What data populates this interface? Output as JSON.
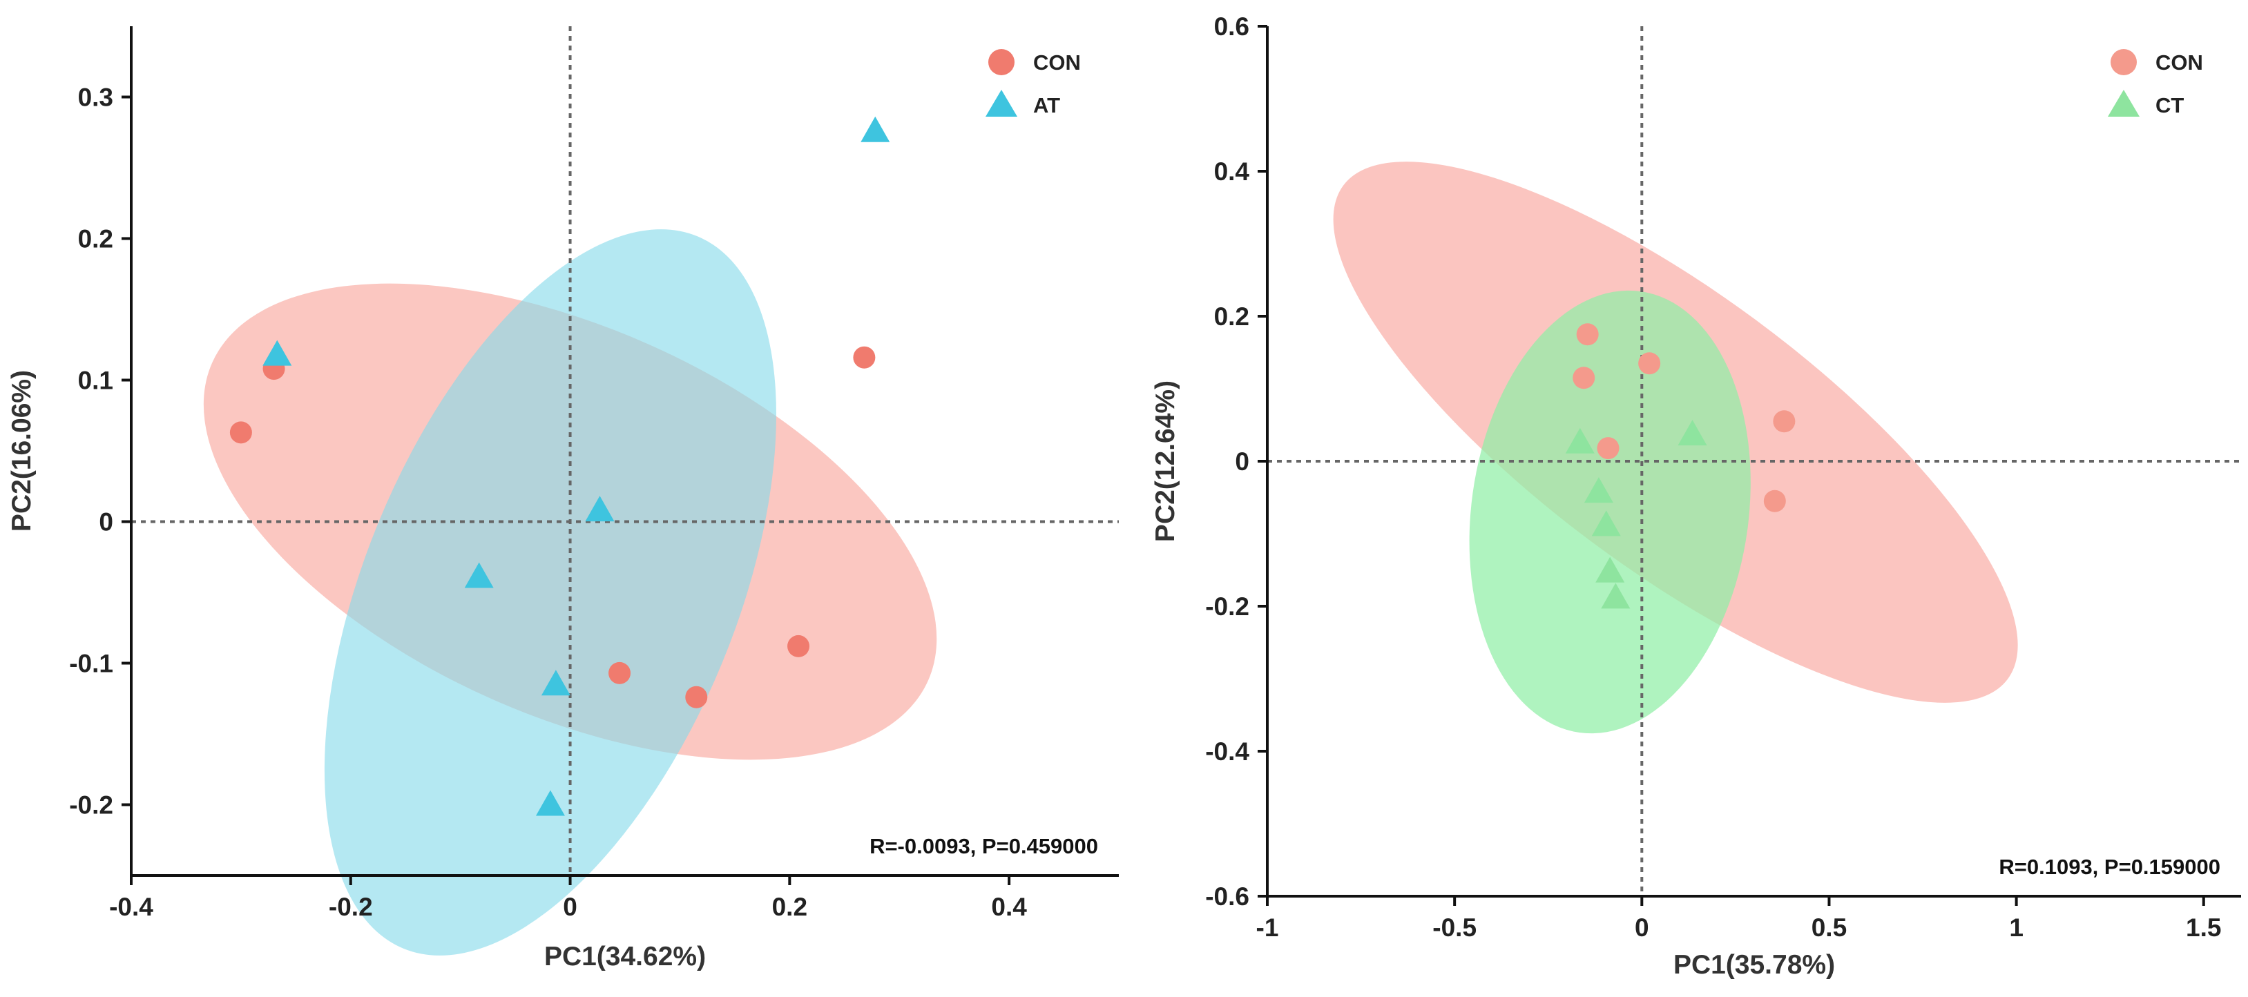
{
  "chart_data": [
    {
      "type": "scatter",
      "title": "",
      "xlabel": "PC1(34.62%)",
      "ylabel": "PC2(16.06%)",
      "xlim": [
        -0.4,
        0.5
      ],
      "ylim": [
        -0.25,
        0.35
      ],
      "xticks": [
        -0.4,
        -0.2,
        0,
        0.2,
        0.4
      ],
      "yticks": [
        -0.2,
        -0.1,
        0,
        0.1,
        0.2,
        0.3
      ],
      "xtick_labels": [
        "-0.4",
        "-0.2",
        "0",
        "0.2",
        "0.4"
      ],
      "ytick_labels": [
        "-0.2",
        "-0.1",
        "0",
        "0.1",
        "0.2",
        "0.3"
      ],
      "grid": false,
      "reference_lines": {
        "x": 0,
        "y": 0,
        "style": "dotted"
      },
      "legend_position": "top-right",
      "annotation": "R=-0.0093, P=0.459000",
      "annotation_position": "bottom-right",
      "series": [
        {
          "name": "CON",
          "marker": "circle",
          "color": "#F07B6E",
          "ellipse_color": "#F9A49B",
          "points": [
            [
              -0.3,
              0.063
            ],
            [
              -0.27,
              0.108
            ],
            [
              0.045,
              -0.107
            ],
            [
              0.115,
              -0.124
            ],
            [
              0.208,
              -0.088
            ],
            [
              0.268,
              0.116
            ]
          ],
          "ellipse": {
            "center": [
              0.0,
              0.0
            ],
            "semi_axes": [
              0.345,
              0.14
            ],
            "angle_deg": -19
          }
        },
        {
          "name": "AT",
          "marker": "triangle",
          "color": "#3EC4DF",
          "ellipse_color": "#86DAEA",
          "points": [
            [
              -0.267,
              0.118
            ],
            [
              -0.083,
              -0.039
            ],
            [
              -0.013,
              -0.115
            ],
            [
              0.027,
              0.008
            ],
            [
              -0.018,
              -0.2
            ],
            [
              0.278,
              0.276
            ]
          ],
          "ellipse": {
            "center": [
              -0.018,
              -0.05
            ],
            "semi_axes": [
              0.285,
              0.158
            ],
            "angle_deg": 62
          }
        }
      ]
    },
    {
      "type": "scatter",
      "title": "",
      "xlabel": "PC1(35.78%)",
      "ylabel": "PC2(12.64%)",
      "xlim": [
        -1,
        1.6
      ],
      "ylim": [
        -0.6,
        0.6
      ],
      "xticks": [
        -1,
        -0.5,
        0,
        0.5,
        1,
        1.5
      ],
      "yticks": [
        -0.6,
        -0.4,
        -0.2,
        0,
        0.2,
        0.4,
        0.6
      ],
      "xtick_labels": [
        "-1",
        "-0.5",
        "0",
        "0.5",
        "1",
        "1.5"
      ],
      "ytick_labels": [
        "-0.6",
        "-0.4",
        "-0.2",
        "0",
        "0.2",
        "0.4",
        "0.6"
      ],
      "grid": false,
      "reference_lines": {
        "x": 0,
        "y": 0,
        "style": "dotted"
      },
      "legend_position": "top-right",
      "annotation": "R=0.1093, P=0.159000",
      "annotation_position": "bottom-right",
      "series": [
        {
          "name": "CON",
          "marker": "circle",
          "color": "#F49A8C",
          "ellipse_color": "#F9AFA7",
          "points": [
            [
              -0.145,
              0.175
            ],
            [
              -0.155,
              0.115
            ],
            [
              0.02,
              0.135
            ],
            [
              -0.09,
              0.018
            ],
            [
              0.38,
              0.055
            ],
            [
              0.355,
              -0.055
            ]
          ],
          "ellipse": {
            "center": [
              0.09,
              0.04
            ],
            "semi_axes": [
              0.95,
              0.2
            ],
            "angle_deg": -21
          }
        },
        {
          "name": "CT",
          "marker": "triangle",
          "color": "#8EE49F",
          "ellipse_color": "#90EEA6",
          "points": [
            [
              -0.165,
              0.026
            ],
            [
              -0.115,
              -0.042
            ],
            [
              -0.095,
              -0.088
            ],
            [
              -0.085,
              -0.152
            ],
            [
              -0.07,
              -0.188
            ],
            [
              0.135,
              0.037
            ]
          ],
          "ellipse": {
            "center": [
              -0.085,
              -0.07
            ],
            "semi_axes": [
              0.315,
              0.34
            ],
            "angle_deg": 75
          }
        }
      ]
    }
  ]
}
